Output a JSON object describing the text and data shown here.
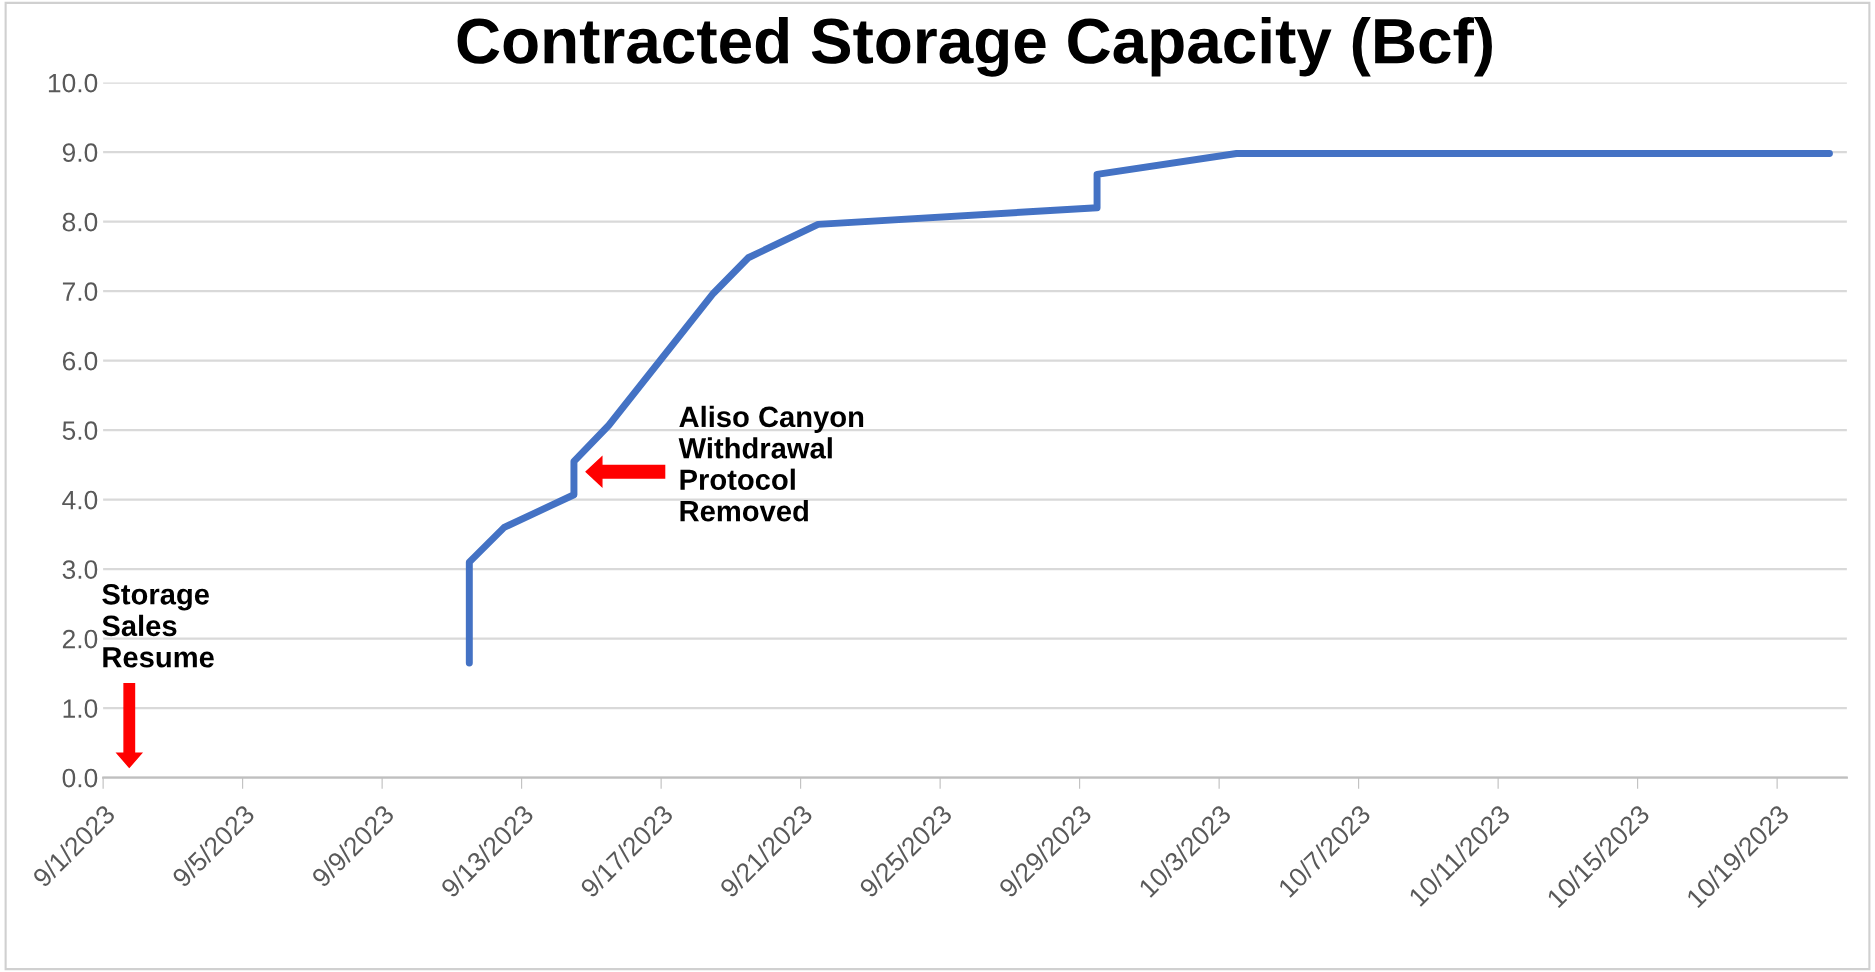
{
  "chart_data": {
    "type": "line",
    "title": "Contracted Storage Capacity (Bcf)",
    "x": [
      "2023-09-11T12:00",
      "2023-09-11T12:00",
      "2023-09-12T12:00",
      "2023-09-14T12:00",
      "2023-09-14T12:00",
      "2023-09-15T12:00",
      "2023-09-18T12:00",
      "2023-09-19T12:00",
      "2023-09-21T12:00",
      "2023-09-29T12:00",
      "2023-09-29T12:00",
      "2023-10-03T12:00",
      "2023-10-20T12:00"
    ],
    "series": [
      {
        "color": "#4472c4",
        "values": [
          1.65,
          3.1,
          3.6,
          4.07,
          4.55,
          5.07,
          6.97,
          7.48,
          7.96,
          8.2,
          8.68,
          8.98,
          8.98
        ]
      }
    ],
    "xlim": [
      "2023-09-01",
      "2023-10-21"
    ],
    "xticks": [
      {
        "value": "2023-09-01",
        "label": "9/1/2023"
      },
      {
        "value": "2023-09-05",
        "label": "9/5/2023"
      },
      {
        "value": "2023-09-09",
        "label": "9/9/2023"
      },
      {
        "value": "2023-09-13",
        "label": "9/13/2023"
      },
      {
        "value": "2023-09-17",
        "label": "9/17/2023"
      },
      {
        "value": "2023-09-21",
        "label": "9/21/2023"
      },
      {
        "value": "2023-09-25",
        "label": "9/25/2023"
      },
      {
        "value": "2023-09-29",
        "label": "9/29/2023"
      },
      {
        "value": "2023-10-03",
        "label": "10/3/2023"
      },
      {
        "value": "2023-10-07",
        "label": "10/7/2023"
      },
      {
        "value": "2023-10-11",
        "label": "10/11/2023"
      },
      {
        "value": "2023-10-15",
        "label": "10/15/2023"
      },
      {
        "value": "2023-10-19",
        "label": "10/19/2023"
      }
    ],
    "ylim": [
      0,
      10
    ],
    "yticks": [
      {
        "value": 0,
        "label": "0.0"
      },
      {
        "value": 1,
        "label": "1.0"
      },
      {
        "value": 2,
        "label": "2.0"
      },
      {
        "value": 3,
        "label": "3.0"
      },
      {
        "value": 4,
        "label": "4.0"
      },
      {
        "value": 5,
        "label": "5.0"
      },
      {
        "value": 6,
        "label": "6.0"
      },
      {
        "value": 7,
        "label": "7.0"
      },
      {
        "value": 8,
        "label": "8.0"
      },
      {
        "value": 9,
        "label": "9.0"
      },
      {
        "value": 10,
        "label": "10.0"
      }
    ],
    "grid": "y",
    "marker": "none",
    "line_style": "solid",
    "annotations": [
      "Storage\nSales\nResume",
      "Aliso Canyon\nWithdrawal\nProtocol\nRemoved"
    ]
  }
}
